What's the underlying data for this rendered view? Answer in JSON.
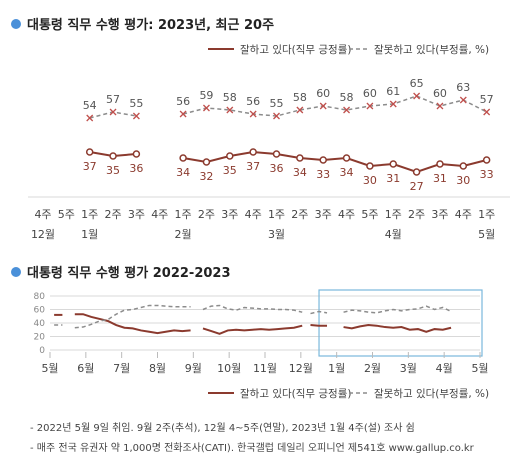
{
  "colors": {
    "approve": "#8b3a2e",
    "disapprove": "#8c8c8c",
    "bullet": "#4a90d9",
    "highlight": "#7ab8dc",
    "grid": "#d9d9d9"
  },
  "chart_data": [
    {
      "type": "line",
      "title": "대통령 직무 수행 평가: 2023년, 최근 20주",
      "legend_position": "top-right",
      "x": [
        "4주",
        "5주",
        "1주",
        "2주",
        "3주",
        "4주",
        "1주",
        "2주",
        "3주",
        "4주",
        "1주",
        "2주",
        "3주",
        "4주",
        "5주",
        "1주",
        "2주",
        "3주",
        "4주",
        "1주"
      ],
      "month_labels": [
        {
          "index": 0,
          "label": "12월"
        },
        {
          "index": 2,
          "label": "1월"
        },
        {
          "index": 6,
          "label": "2월"
        },
        {
          "index": 10,
          "label": "3월"
        },
        {
          "index": 15,
          "label": "4월"
        },
        {
          "index": 19,
          "label": "5월"
        }
      ],
      "series": [
        {
          "name": "잘하고 있다(직무 긍정률)",
          "style": "solid",
          "values": [
            null,
            null,
            37,
            35,
            36,
            null,
            34,
            32,
            35,
            37,
            36,
            34,
            33,
            34,
            30,
            31,
            27,
            31,
            30,
            33
          ]
        },
        {
          "name": "잘못하고 있다(부정률, %)",
          "style": "dashed",
          "values": [
            null,
            null,
            54,
            57,
            55,
            null,
            56,
            59,
            58,
            56,
            55,
            58,
            60,
            58,
            60,
            61,
            65,
            60,
            63,
            57
          ]
        }
      ]
    },
    {
      "type": "line",
      "title": "대통령 직무 수행 평가 2022-2023",
      "ylim": [
        0,
        80
      ],
      "yticks": [
        0,
        20,
        40,
        60,
        80
      ],
      "legend_position": "bottom-right",
      "month_ticks": [
        "5월",
        "6월",
        "7월",
        "8월",
        "9월",
        "10월",
        "11월",
        "12월",
        "1월",
        "2월",
        "3월",
        "4월",
        "5월"
      ],
      "x_range": [
        0,
        52
      ],
      "highlight_range": [
        33.5,
        52
      ],
      "series": [
        {
          "name": "잘하고 있다(직무 긍정률)",
          "style": "solid",
          "segments": [
            [
              [
                0.5,
                52
              ],
              [
                1.5,
                52
              ]
            ],
            [
              [
                3,
                53
              ],
              [
                4,
                53
              ],
              [
                5,
                49
              ],
              [
                6,
                46
              ],
              [
                7,
                43
              ],
              [
                8,
                37
              ],
              [
                9,
                33
              ],
              [
                10,
                32
              ],
              [
                11,
                29
              ],
              [
                12,
                27
              ],
              [
                13,
                25
              ],
              [
                14,
                27
              ],
              [
                15,
                29
              ],
              [
                16,
                28
              ],
              [
                17,
                29
              ]
            ],
            [
              [
                18.5,
                32
              ],
              [
                19.5,
                28
              ],
              [
                20.5,
                24
              ],
              [
                21.5,
                29
              ],
              [
                22.5,
                30
              ],
              [
                23.5,
                29
              ],
              [
                24.5,
                30
              ],
              [
                25.5,
                31
              ],
              [
                26.5,
                30
              ],
              [
                27.5,
                31
              ],
              [
                28.5,
                32
              ],
              [
                29.5,
                33
              ],
              [
                30.5,
                36
              ]
            ],
            [
              [
                31.5,
                37
              ],
              [
                32.5,
                36
              ],
              [
                33.5,
                36
              ]
            ],
            [
              [
                35.5,
                34
              ],
              [
                36.5,
                32
              ],
              [
                37.5,
                35
              ],
              [
                38.5,
                37
              ],
              [
                39.5,
                36
              ],
              [
                40.5,
                34
              ],
              [
                41.5,
                33
              ],
              [
                42.5,
                34
              ],
              [
                43.5,
                30
              ],
              [
                44.5,
                31
              ],
              [
                45.5,
                27
              ],
              [
                46.5,
                31
              ],
              [
                47.5,
                30
              ],
              [
                48.5,
                33
              ]
            ]
          ]
        },
        {
          "name": "잘못하고 있다(부정률, %)",
          "style": "dashed",
          "segments": [
            [
              [
                0.5,
                37
              ],
              [
                1.5,
                37
              ]
            ],
            [
              [
                3,
                33
              ],
              [
                4,
                34
              ],
              [
                5,
                38
              ],
              [
                6,
                43
              ],
              [
                7,
                45
              ],
              [
                8,
                53
              ],
              [
                9,
                59
              ],
              [
                10,
                60
              ],
              [
                11,
                63
              ],
              [
                12,
                66
              ],
              [
                13,
                66
              ],
              [
                14,
                65
              ],
              [
                15,
                64
              ],
              [
                16,
                64
              ],
              [
                17,
                64
              ]
            ],
            [
              [
                18.5,
                60
              ],
              [
                19.5,
                65
              ],
              [
                20.5,
                66
              ],
              [
                21.5,
                61
              ],
              [
                22.5,
                59
              ],
              [
                23.5,
                63
              ],
              [
                24.5,
                62
              ],
              [
                25.5,
                61
              ],
              [
                26.5,
                61
              ],
              [
                27.5,
                60
              ],
              [
                28.5,
                60
              ],
              [
                29.5,
                59
              ],
              [
                30.5,
                56
              ]
            ],
            [
              [
                31.5,
                54
              ],
              [
                32.5,
                57
              ],
              [
                33.5,
                55
              ]
            ],
            [
              [
                35.5,
                56
              ],
              [
                36.5,
                59
              ],
              [
                37.5,
                58
              ],
              [
                38.5,
                56
              ],
              [
                39.5,
                55
              ],
              [
                40.5,
                58
              ],
              [
                41.5,
                60
              ],
              [
                42.5,
                58
              ],
              [
                43.5,
                60
              ],
              [
                44.5,
                61
              ],
              [
                45.5,
                65
              ],
              [
                46.5,
                60
              ],
              [
                47.5,
                63
              ],
              [
                48.5,
                57
              ]
            ]
          ]
        }
      ]
    }
  ],
  "notes": [
    "- 2022년 5월 9일 취임. 9월 2주(추석), 12월 4~5주(연말), 2023년 1월 4주(설) 조사 쉼",
    "- 매주 전국 유권자 약 1,000명 전화조사(CATI). 한국갤럽 데일리 오피니언 제541호 www.gallup.co.kr"
  ]
}
